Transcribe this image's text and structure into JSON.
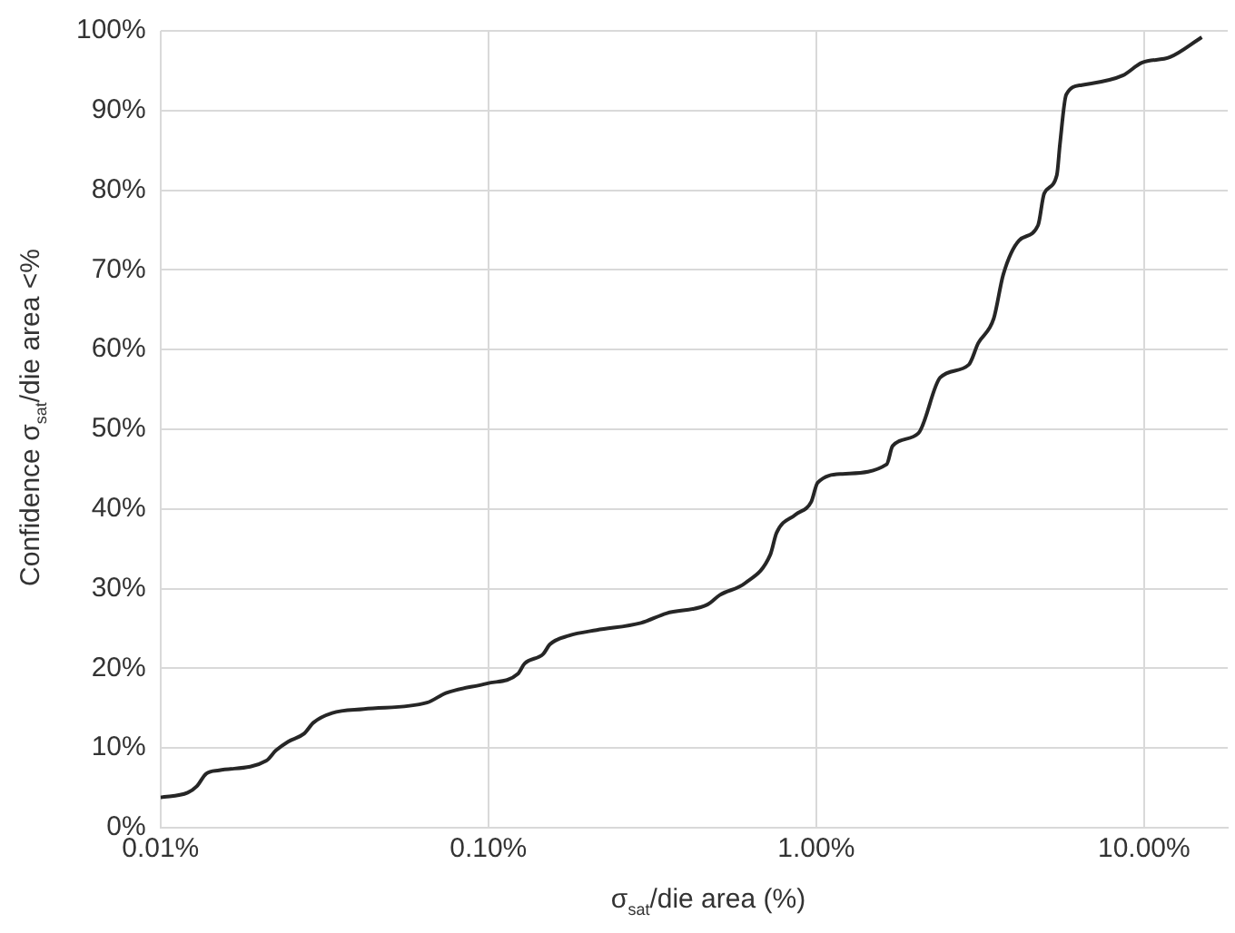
{
  "chart_data": {
    "type": "line",
    "xlabel": "σ$_{sat}$/die area  (%)",
    "ylabel": "Confidence σ$_{sat}$/die area <%",
    "log": "x",
    "grid": true,
    "legend": false,
    "marker": "none",
    "line_style": "solid",
    "xlim": [
      0.01,
      18
    ],
    "ylim": [
      0,
      100
    ],
    "xticks": [
      {
        "value": 0.01,
        "label": "0.01%"
      },
      {
        "value": 0.1,
        "label": "0.10%"
      },
      {
        "value": 1,
        "label": "1.00%"
      },
      {
        "value": 10,
        "label": "10.00%"
      }
    ],
    "yticks": [
      {
        "value": 0,
        "label": "0%"
      },
      {
        "value": 10,
        "label": "10%"
      },
      {
        "value": 20,
        "label": "20%"
      },
      {
        "value": 30,
        "label": "30%"
      },
      {
        "value": 40,
        "label": "40%"
      },
      {
        "value": 50,
        "label": "50%"
      },
      {
        "value": 60,
        "label": "60%"
      },
      {
        "value": 70,
        "label": "70%"
      },
      {
        "value": 80,
        "label": "80%"
      },
      {
        "value": 90,
        "label": "90%"
      },
      {
        "value": 100,
        "label": "100%"
      }
    ],
    "series": [
      {
        "color": "#262626",
        "x": [
          0.01,
          0.0121,
          0.0129,
          0.0138,
          0.0151,
          0.021,
          0.0225,
          0.0245,
          0.0274,
          0.0293,
          0.0334,
          0.0417,
          0.065,
          0.0742,
          0.099,
          0.123,
          0.129,
          0.147,
          0.154,
          0.176,
          0.214,
          0.292,
          0.349,
          0.466,
          0.508,
          0.607,
          0.725,
          0.757,
          0.865,
          0.966,
          1.01,
          1.205,
          1.64,
          1.71,
          2.05,
          2.39,
          2.92,
          3.12,
          3.48,
          3.72,
          4.16,
          4.75,
          4.96,
          5.42,
          5.54,
          5.79,
          6.46,
          8.61,
          9.84,
          12.0,
          15.0
        ],
        "values": [
          3.8,
          4.4,
          5.2,
          6.8,
          7.2,
          8.4,
          9.7,
          10.8,
          11.8,
          13.2,
          14.4,
          14.9,
          15.7,
          16.9,
          18.1,
          19.3,
          20.6,
          21.8,
          23.0,
          24.1,
          24.8,
          25.7,
          26.9,
          28.0,
          29.2,
          30.7,
          34.3,
          37.0,
          39.3,
          40.9,
          43.3,
          44.4,
          45.6,
          47.9,
          49.5,
          56.5,
          58.1,
          60.8,
          63.9,
          69.4,
          73.7,
          75.6,
          79.6,
          81.9,
          85.8,
          92.0,
          93.2,
          94.4,
          96.0,
          96.7,
          99.2
        ]
      }
    ]
  }
}
